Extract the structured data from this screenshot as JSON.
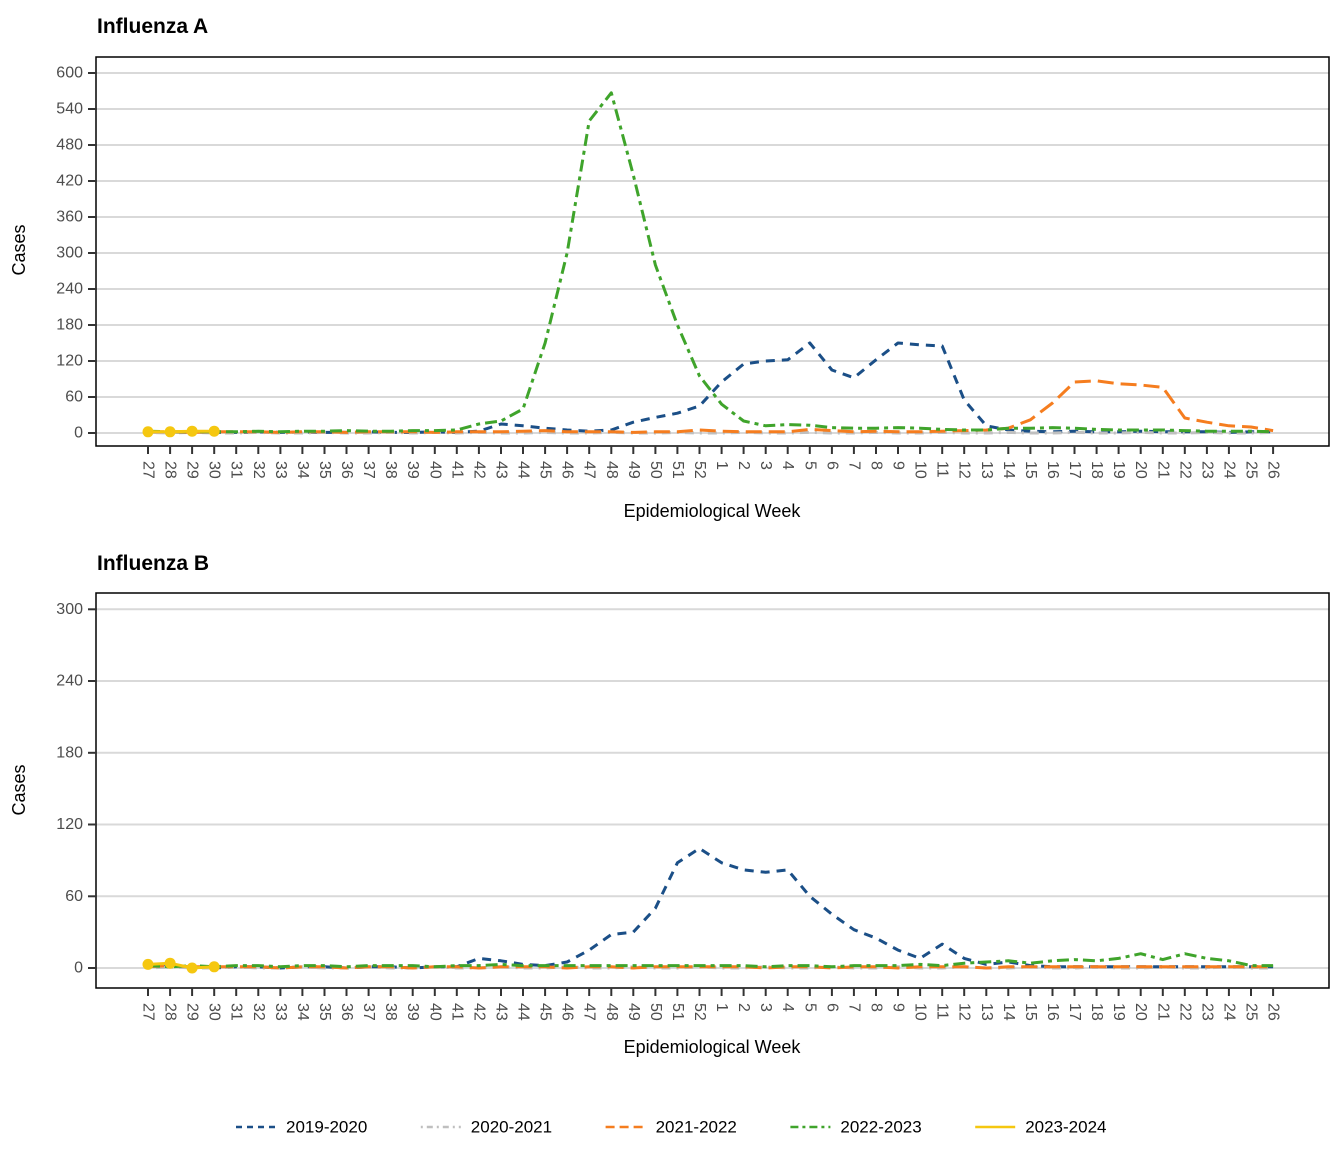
{
  "page": {
    "background": "#ffffff"
  },
  "legend": {
    "position": "bottom",
    "items": [
      {
        "label": "2019-2020",
        "color": "#1b4f87",
        "dash": "dashed",
        "points": false
      },
      {
        "label": "2020-2021",
        "color": "#bfbfbf",
        "dash": "dotdash",
        "points": false
      },
      {
        "label": "2021-2022",
        "color": "#f57d1f",
        "dash": "longdash",
        "points": false
      },
      {
        "label": "2022-2023",
        "color": "#3fa42b",
        "dash": "twodash",
        "points": false
      },
      {
        "label": "2023-2024",
        "color": "#f5c710",
        "dash": "solid",
        "points": true
      }
    ]
  },
  "chart_data": [
    {
      "type": "line",
      "title": "Influenza A",
      "xlabel": "Epidemiological Week",
      "ylabel": "Cases",
      "ylim": [
        0,
        627
      ],
      "y_ticks": [
        0,
        60,
        120,
        180,
        240,
        300,
        360,
        420,
        480,
        540,
        600
      ],
      "grid": "horizontal-major",
      "x_categories": [
        "27",
        "28",
        "29",
        "30",
        "31",
        "32",
        "33",
        "34",
        "35",
        "36",
        "37",
        "38",
        "39",
        "40",
        "41",
        "42",
        "43",
        "44",
        "45",
        "46",
        "47",
        "48",
        "49",
        "50",
        "51",
        "52",
        "1",
        "2",
        "3",
        "4",
        "5",
        "6",
        "7",
        "8",
        "9",
        "10",
        "11",
        "12",
        "13",
        "14",
        "15",
        "16",
        "17",
        "18",
        "19",
        "20",
        "21",
        "22",
        "23",
        "24",
        "25",
        "26"
      ],
      "series": [
        {
          "name": "2019-2020",
          "color": "#1b4f87",
          "dash": "dashed",
          "points": false,
          "values": [
            2,
            1,
            2,
            1,
            1,
            2,
            1,
            2,
            1,
            1,
            2,
            1,
            1,
            2,
            1,
            3,
            15,
            12,
            8,
            5,
            3,
            5,
            18,
            26,
            33,
            45,
            85,
            115,
            120,
            122,
            150,
            105,
            92,
            122,
            150,
            147,
            145,
            55,
            12,
            5,
            3,
            2,
            3,
            2,
            2,
            3,
            2,
            2,
            2,
            1,
            2,
            2
          ]
        },
        {
          "name": "2020-2021",
          "color": "#bfbfbf",
          "dash": "dotdash",
          "points": false,
          "values": [
            1,
            0,
            1,
            0,
            0,
            1,
            0,
            0,
            1,
            0,
            0,
            1,
            0,
            1,
            0,
            1,
            0,
            0,
            1,
            0,
            0,
            1,
            0,
            0,
            1,
            0,
            0,
            1,
            0,
            0,
            1,
            0,
            0,
            1,
            0,
            0,
            1,
            0,
            0,
            1,
            0,
            0,
            1,
            0,
            0,
            1,
            0,
            0,
            1,
            0,
            0,
            1
          ]
        },
        {
          "name": "2021-2022",
          "color": "#f57d1f",
          "dash": "longdash",
          "points": false,
          "values": [
            2,
            2,
            1,
            2,
            2,
            2,
            1,
            2,
            2,
            1,
            2,
            2,
            2,
            1,
            2,
            2,
            2,
            3,
            4,
            2,
            2,
            2,
            1,
            2,
            2,
            5,
            3,
            2,
            2,
            2,
            6,
            4,
            2,
            3,
            2,
            2,
            3,
            4,
            5,
            8,
            22,
            50,
            85,
            87,
            82,
            80,
            76,
            25,
            18,
            12,
            10,
            4
          ]
        },
        {
          "name": "2022-2023",
          "color": "#3fa42b",
          "dash": "twodash",
          "points": false,
          "values": [
            3,
            2,
            2,
            2,
            2,
            3,
            2,
            3,
            3,
            4,
            3,
            3,
            4,
            4,
            5,
            15,
            20,
            40,
            150,
            300,
            520,
            567,
            430,
            280,
            180,
            95,
            48,
            20,
            12,
            14,
            13,
            9,
            8,
            8,
            9,
            8,
            6,
            5,
            5,
            8,
            8,
            9,
            8,
            6,
            5,
            5,
            5,
            4,
            3,
            3,
            3,
            2
          ]
        },
        {
          "name": "2023-2024",
          "color": "#f5c710",
          "dash": "solid",
          "points": true,
          "values": [
            2,
            2,
            3,
            3,
            null,
            null,
            null,
            null,
            null,
            null,
            null,
            null,
            null,
            null,
            null,
            null,
            null,
            null,
            null,
            null,
            null,
            null,
            null,
            null,
            null,
            null,
            null,
            null,
            null,
            null,
            null,
            null,
            null,
            null,
            null,
            null,
            null,
            null,
            null,
            null,
            null,
            null,
            null,
            null,
            null,
            null,
            null,
            null,
            null,
            null,
            null,
            null
          ]
        }
      ]
    },
    {
      "type": "line",
      "title": "Influenza B",
      "xlabel": "Epidemiological Week",
      "ylabel": "Cases",
      "ylim": [
        0,
        314
      ],
      "y_ticks": [
        0,
        60,
        120,
        180,
        240,
        300
      ],
      "grid": "horizontal-major",
      "x_categories": [
        "27",
        "28",
        "29",
        "30",
        "31",
        "32",
        "33",
        "34",
        "35",
        "36",
        "37",
        "38",
        "39",
        "40",
        "41",
        "42",
        "43",
        "44",
        "45",
        "46",
        "47",
        "48",
        "49",
        "50",
        "51",
        "52",
        "1",
        "2",
        "3",
        "4",
        "5",
        "6",
        "7",
        "8",
        "9",
        "10",
        "11",
        "12",
        "13",
        "14",
        "15",
        "16",
        "17",
        "18",
        "19",
        "20",
        "21",
        "22",
        "23",
        "24",
        "25",
        "26"
      ],
      "series": [
        {
          "name": "2019-2020",
          "color": "#1b4f87",
          "dash": "dashed",
          "points": false,
          "values": [
            2,
            1,
            1,
            0,
            1,
            1,
            0,
            1,
            1,
            0,
            1,
            1,
            0,
            1,
            1,
            8,
            6,
            3,
            2,
            5,
            15,
            28,
            30,
            50,
            88,
            100,
            88,
            82,
            80,
            82,
            60,
            45,
            32,
            25,
            15,
            8,
            20,
            8,
            3,
            5,
            2,
            1,
            1,
            1,
            1,
            1,
            1,
            1,
            1,
            1,
            1,
            1
          ]
        },
        {
          "name": "2020-2021",
          "color": "#bfbfbf",
          "dash": "dotdash",
          "points": false,
          "values": [
            0,
            1,
            0,
            0,
            1,
            0,
            0,
            1,
            0,
            0,
            1,
            0,
            0,
            1,
            0,
            0,
            1,
            0,
            0,
            1,
            0,
            0,
            1,
            0,
            0,
            1,
            0,
            0,
            1,
            0,
            0,
            1,
            0,
            0,
            1,
            0,
            0,
            1,
            0,
            0,
            1,
            0,
            0,
            1,
            0,
            0,
            1,
            0,
            0,
            1,
            0,
            0
          ]
        },
        {
          "name": "2021-2022",
          "color": "#f57d1f",
          "dash": "longdash",
          "points": false,
          "values": [
            1,
            2,
            1,
            1,
            1,
            1,
            0,
            1,
            1,
            0,
            1,
            1,
            0,
            1,
            1,
            0,
            1,
            1,
            1,
            0,
            1,
            1,
            0,
            1,
            1,
            1,
            1,
            1,
            0,
            1,
            1,
            0,
            1,
            1,
            0,
            1,
            1,
            1,
            0,
            1,
            1,
            1,
            1,
            1,
            1,
            1,
            1,
            1,
            1,
            1,
            1,
            1
          ]
        },
        {
          "name": "2022-2023",
          "color": "#3fa42b",
          "dash": "twodash",
          "points": false,
          "values": [
            2,
            1,
            2,
            1,
            2,
            2,
            1,
            2,
            2,
            1,
            2,
            2,
            2,
            1,
            2,
            2,
            3,
            2,
            2,
            2,
            2,
            2,
            2,
            2,
            2,
            2,
            2,
            2,
            1,
            2,
            2,
            1,
            2,
            2,
            2,
            3,
            2,
            4,
            5,
            6,
            4,
            6,
            7,
            6,
            8,
            12,
            7,
            12,
            8,
            6,
            2,
            2
          ]
        },
        {
          "name": "2023-2024",
          "color": "#f5c710",
          "dash": "solid",
          "points": true,
          "values": [
            3,
            4,
            0,
            1,
            null,
            null,
            null,
            null,
            null,
            null,
            null,
            null,
            null,
            null,
            null,
            null,
            null,
            null,
            null,
            null,
            null,
            null,
            null,
            null,
            null,
            null,
            null,
            null,
            null,
            null,
            null,
            null,
            null,
            null,
            null,
            null,
            null,
            null,
            null,
            null,
            null,
            null,
            null,
            null,
            null,
            null,
            null,
            null,
            null,
            null,
            null,
            null
          ]
        }
      ]
    }
  ]
}
